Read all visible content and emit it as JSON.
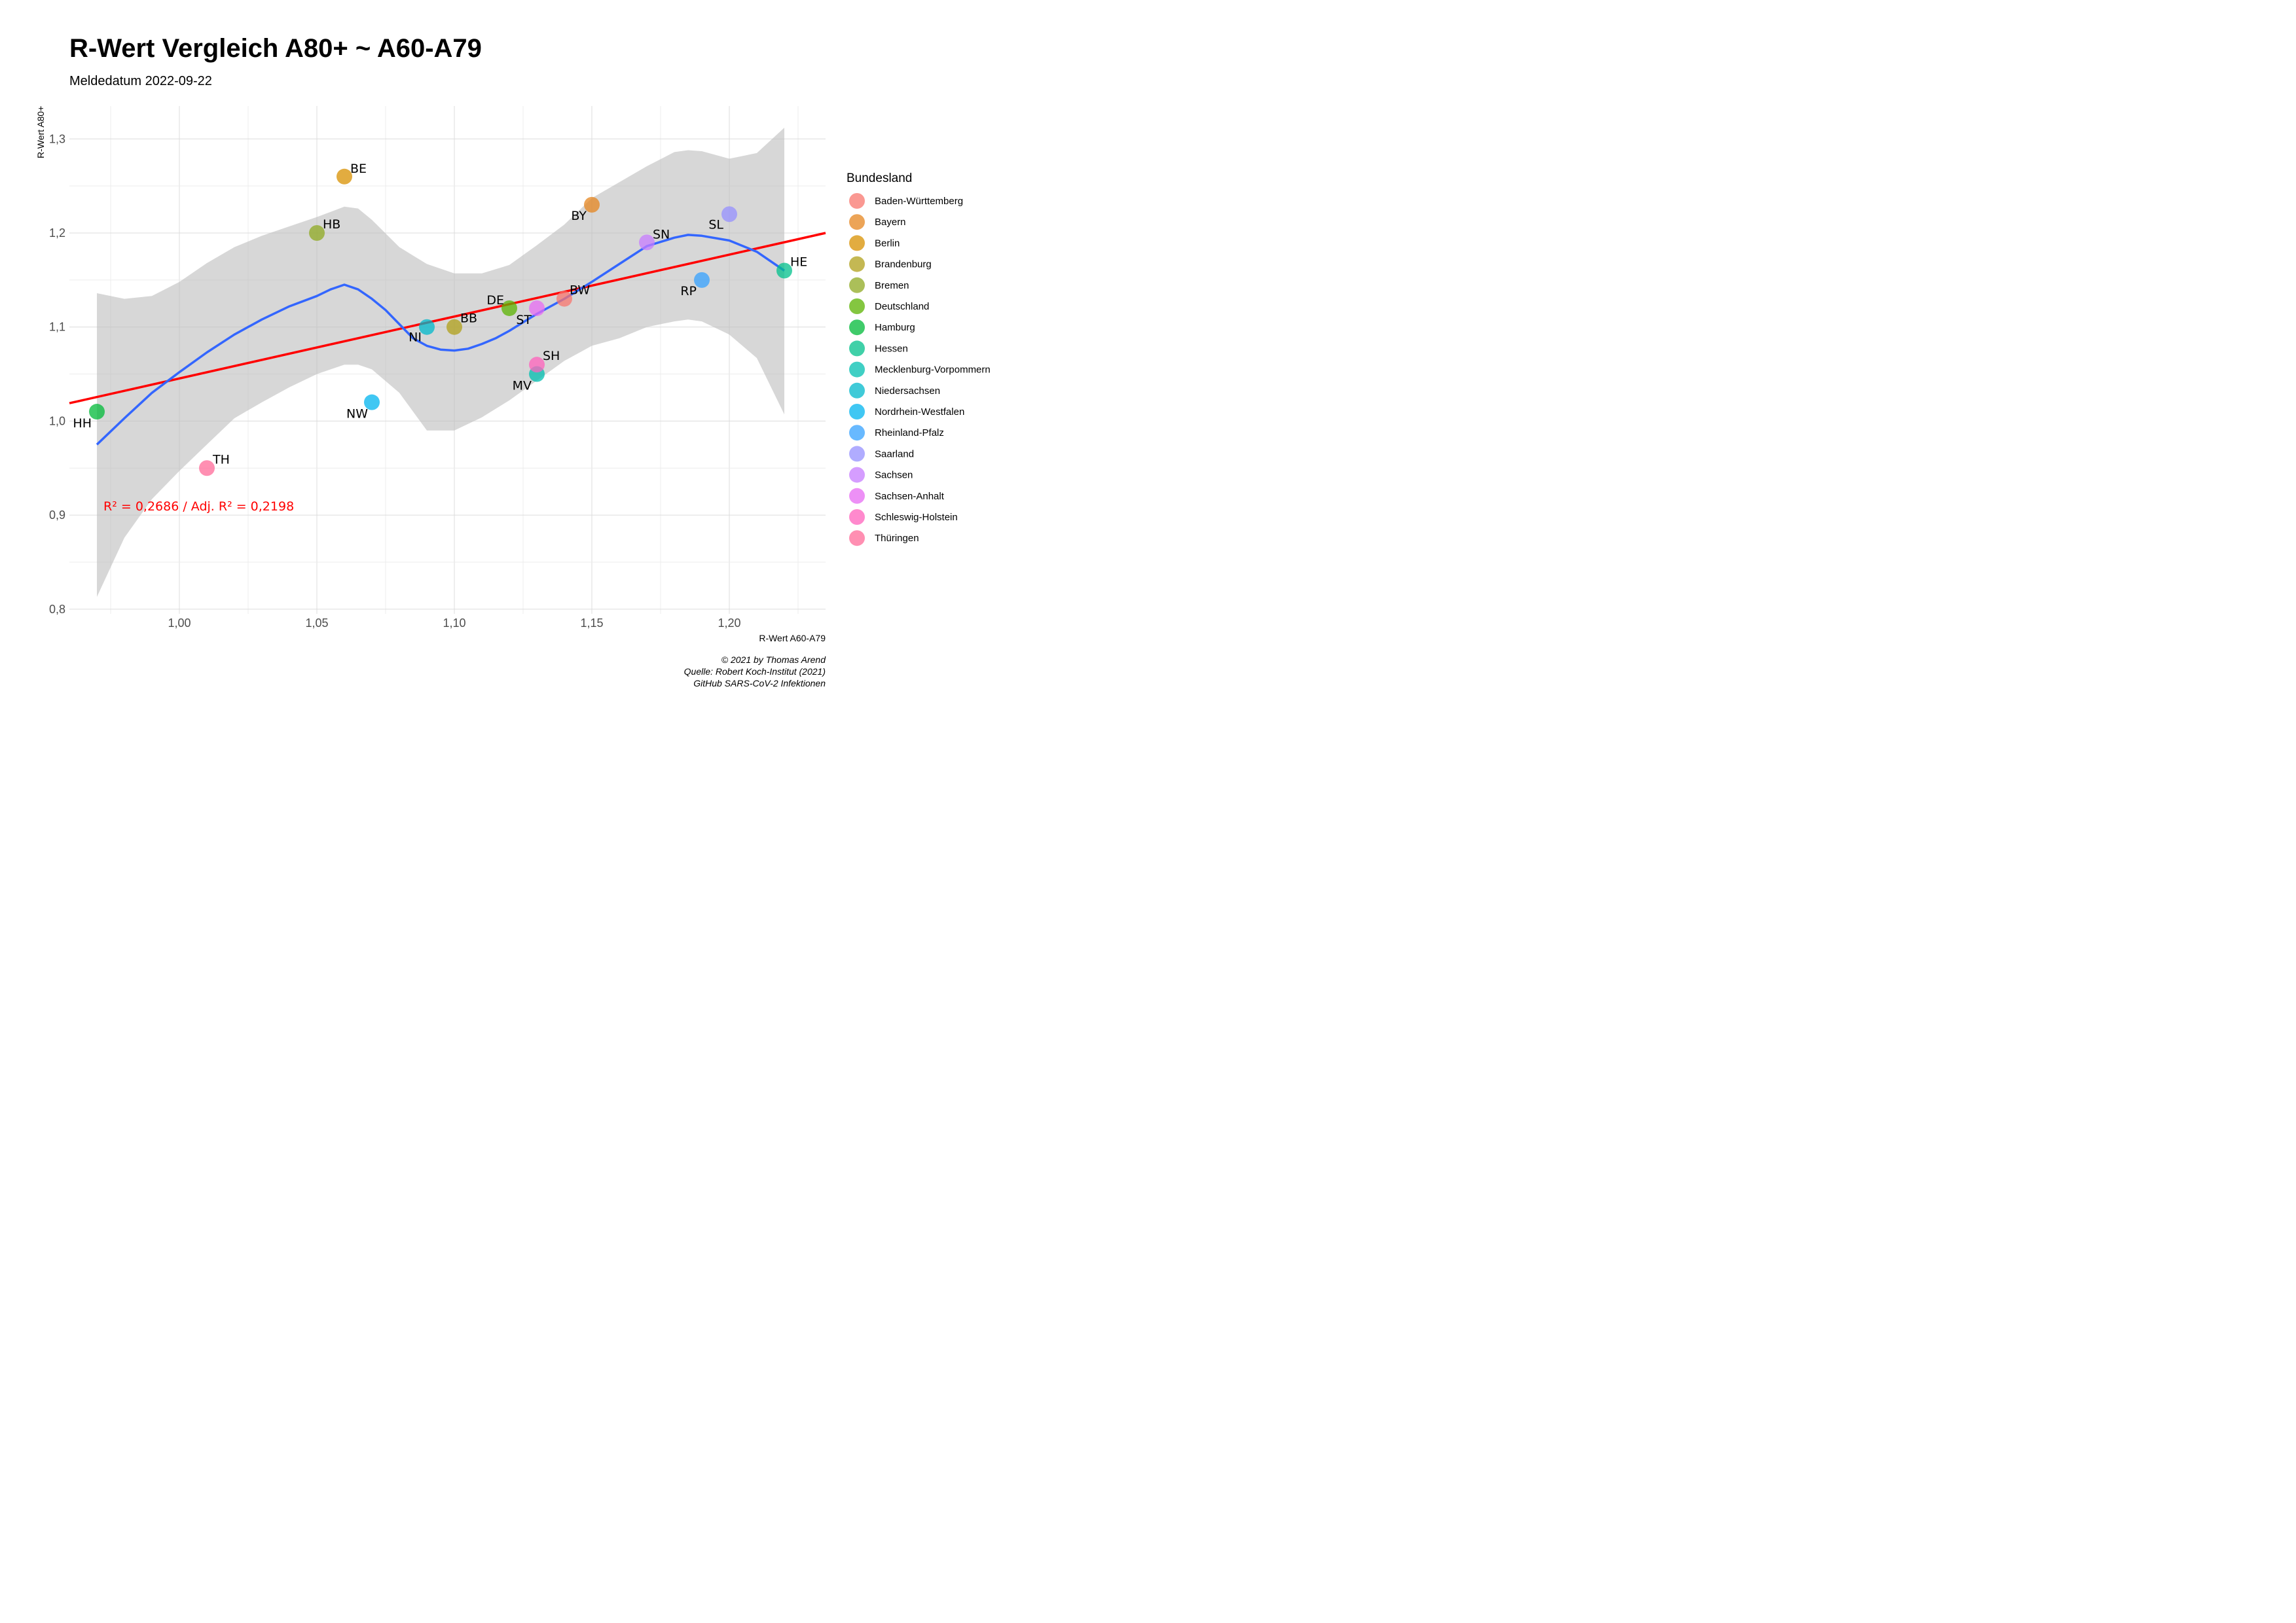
{
  "chart_data": {
    "type": "scatter",
    "title": "R-Wert Vergleich A80+ ~ A60-A79",
    "subtitle": "Meldedatum 2022-09-22",
    "xlabel": "R-Wert A60-A79",
    "ylabel": "R-Wert A80+",
    "xlim": [
      0.96,
      1.235
    ],
    "ylim": [
      0.795,
      1.335
    ],
    "x_ticks": [
      1.0,
      1.05,
      1.1,
      1.15,
      1.2
    ],
    "x_tick_labels": [
      "1,00",
      "1,05",
      "1,10",
      "1,15",
      "1,20"
    ],
    "y_ticks": [
      0.8,
      0.9,
      1.0,
      1.1,
      1.2,
      1.3
    ],
    "y_tick_labels": [
      "0,8",
      "0,9",
      "1,0",
      "1,1",
      "1,2",
      "1,3"
    ],
    "grid": true,
    "legend_title": "Bundesland",
    "legend_position": "right",
    "points": [
      {
        "abbr": "BW",
        "name": "Baden-Württemberg",
        "x": 1.14,
        "y": 1.13,
        "color": "#F8766D"
      },
      {
        "abbr": "BY",
        "name": "Bayern",
        "x": 1.15,
        "y": 1.23,
        "color": "#E6861F"
      },
      {
        "abbr": "BE",
        "name": "Berlin",
        "x": 1.06,
        "y": 1.26,
        "color": "#D89000"
      },
      {
        "abbr": "BB",
        "name": "Brandenburg",
        "x": 1.1,
        "y": 1.1,
        "color": "#B0A01A"
      },
      {
        "abbr": "HB",
        "name": "Bremen",
        "x": 1.05,
        "y": 1.2,
        "color": "#8FAA22"
      },
      {
        "abbr": "DE",
        "name": "Deutschland",
        "x": 1.12,
        "y": 1.12,
        "color": "#5BB300"
      },
      {
        "abbr": "HH",
        "name": "Hamburg",
        "x": 0.97,
        "y": 1.01,
        "color": "#00BA38"
      },
      {
        "abbr": "HE",
        "name": "Hessen",
        "x": 1.22,
        "y": 1.16,
        "color": "#00C08B"
      },
      {
        "abbr": "MV",
        "name": "Mecklenburg-Vorpommern",
        "x": 1.13,
        "y": 1.05,
        "color": "#00BFB0"
      },
      {
        "abbr": "NI",
        "name": "Niedersachsen",
        "x": 1.09,
        "y": 1.1,
        "color": "#00B8CB"
      },
      {
        "abbr": "NW",
        "name": "Nordrhein-Westfalen",
        "x": 1.07,
        "y": 1.02,
        "color": "#00B4EF"
      },
      {
        "abbr": "RP",
        "name": "Rheinland-Pfalz",
        "x": 1.19,
        "y": 1.15,
        "color": "#35A2FF"
      },
      {
        "abbr": "SL",
        "name": "Saarland",
        "x": 1.2,
        "y": 1.22,
        "color": "#9590FF"
      },
      {
        "abbr": "SN",
        "name": "Sachsen",
        "x": 1.17,
        "y": 1.19,
        "color": "#C77CFF"
      },
      {
        "abbr": "ST",
        "name": "Sachsen-Anhalt",
        "x": 1.13,
        "y": 1.12,
        "color": "#E76BF3"
      },
      {
        "abbr": "SH",
        "name": "Schleswig-Holstein",
        "x": 1.13,
        "y": 1.06,
        "color": "#FF62BC"
      },
      {
        "abbr": "TH",
        "name": "Thüringen",
        "x": 1.01,
        "y": 0.95,
        "color": "#FF6A98"
      }
    ],
    "regression_line": {
      "color": "#ff0000",
      "x": [
        0.96,
        1.235
      ],
      "y": [
        1.019,
        1.2
      ]
    },
    "loess": {
      "color": "#3366FF",
      "x": [
        0.97,
        0.98,
        0.99,
        1.0,
        1.01,
        1.02,
        1.03,
        1.04,
        1.05,
        1.055,
        1.06,
        1.065,
        1.07,
        1.075,
        1.08,
        1.085,
        1.09,
        1.095,
        1.1,
        1.105,
        1.11,
        1.115,
        1.12,
        1.125,
        1.13,
        1.14,
        1.15,
        1.16,
        1.17,
        1.18,
        1.185,
        1.19,
        1.2,
        1.21,
        1.22
      ],
      "y": [
        0.975,
        1.003,
        1.03,
        1.052,
        1.073,
        1.092,
        1.108,
        1.122,
        1.133,
        1.14,
        1.145,
        1.14,
        1.13,
        1.118,
        1.103,
        1.088,
        1.08,
        1.076,
        1.075,
        1.077,
        1.082,
        1.088,
        1.096,
        1.105,
        1.114,
        1.13,
        1.148,
        1.167,
        1.186,
        1.195,
        1.198,
        1.197,
        1.192,
        1.18,
        1.16
      ]
    },
    "confidence_band": {
      "color": "#bdbdbd",
      "x": [
        0.97,
        0.98,
        0.99,
        1.0,
        1.01,
        1.02,
        1.03,
        1.04,
        1.05,
        1.06,
        1.065,
        1.07,
        1.08,
        1.09,
        1.1,
        1.11,
        1.12,
        1.13,
        1.14,
        1.15,
        1.16,
        1.17,
        1.18,
        1.185,
        1.19,
        1.2,
        1.21,
        1.22
      ],
      "upper": [
        1.136,
        1.13,
        1.133,
        1.148,
        1.168,
        1.185,
        1.197,
        1.207,
        1.217,
        1.228,
        1.226,
        1.214,
        1.185,
        1.167,
        1.157,
        1.157,
        1.166,
        1.187,
        1.209,
        1.237,
        1.254,
        1.271,
        1.286,
        1.288,
        1.287,
        1.279,
        1.285,
        1.312
      ],
      "lower": [
        0.813,
        0.876,
        0.917,
        0.947,
        0.975,
        1.003,
        1.02,
        1.036,
        1.05,
        1.06,
        1.06,
        1.055,
        1.03,
        0.99,
        0.99,
        1.004,
        1.022,
        1.043,
        1.064,
        1.08,
        1.088,
        1.1,
        1.106,
        1.108,
        1.106,
        1.092,
        1.067,
        1.007
      ]
    },
    "annotation": "R² = 0,2686 / Adj. R² =  0,2198"
  },
  "caption": {
    "line1": "© 2021 by Thomas Arend",
    "line2": "Quelle: Robert Koch-Institut (2021)",
    "line3": "GitHub SARS-CoV-2 Infektionen"
  }
}
